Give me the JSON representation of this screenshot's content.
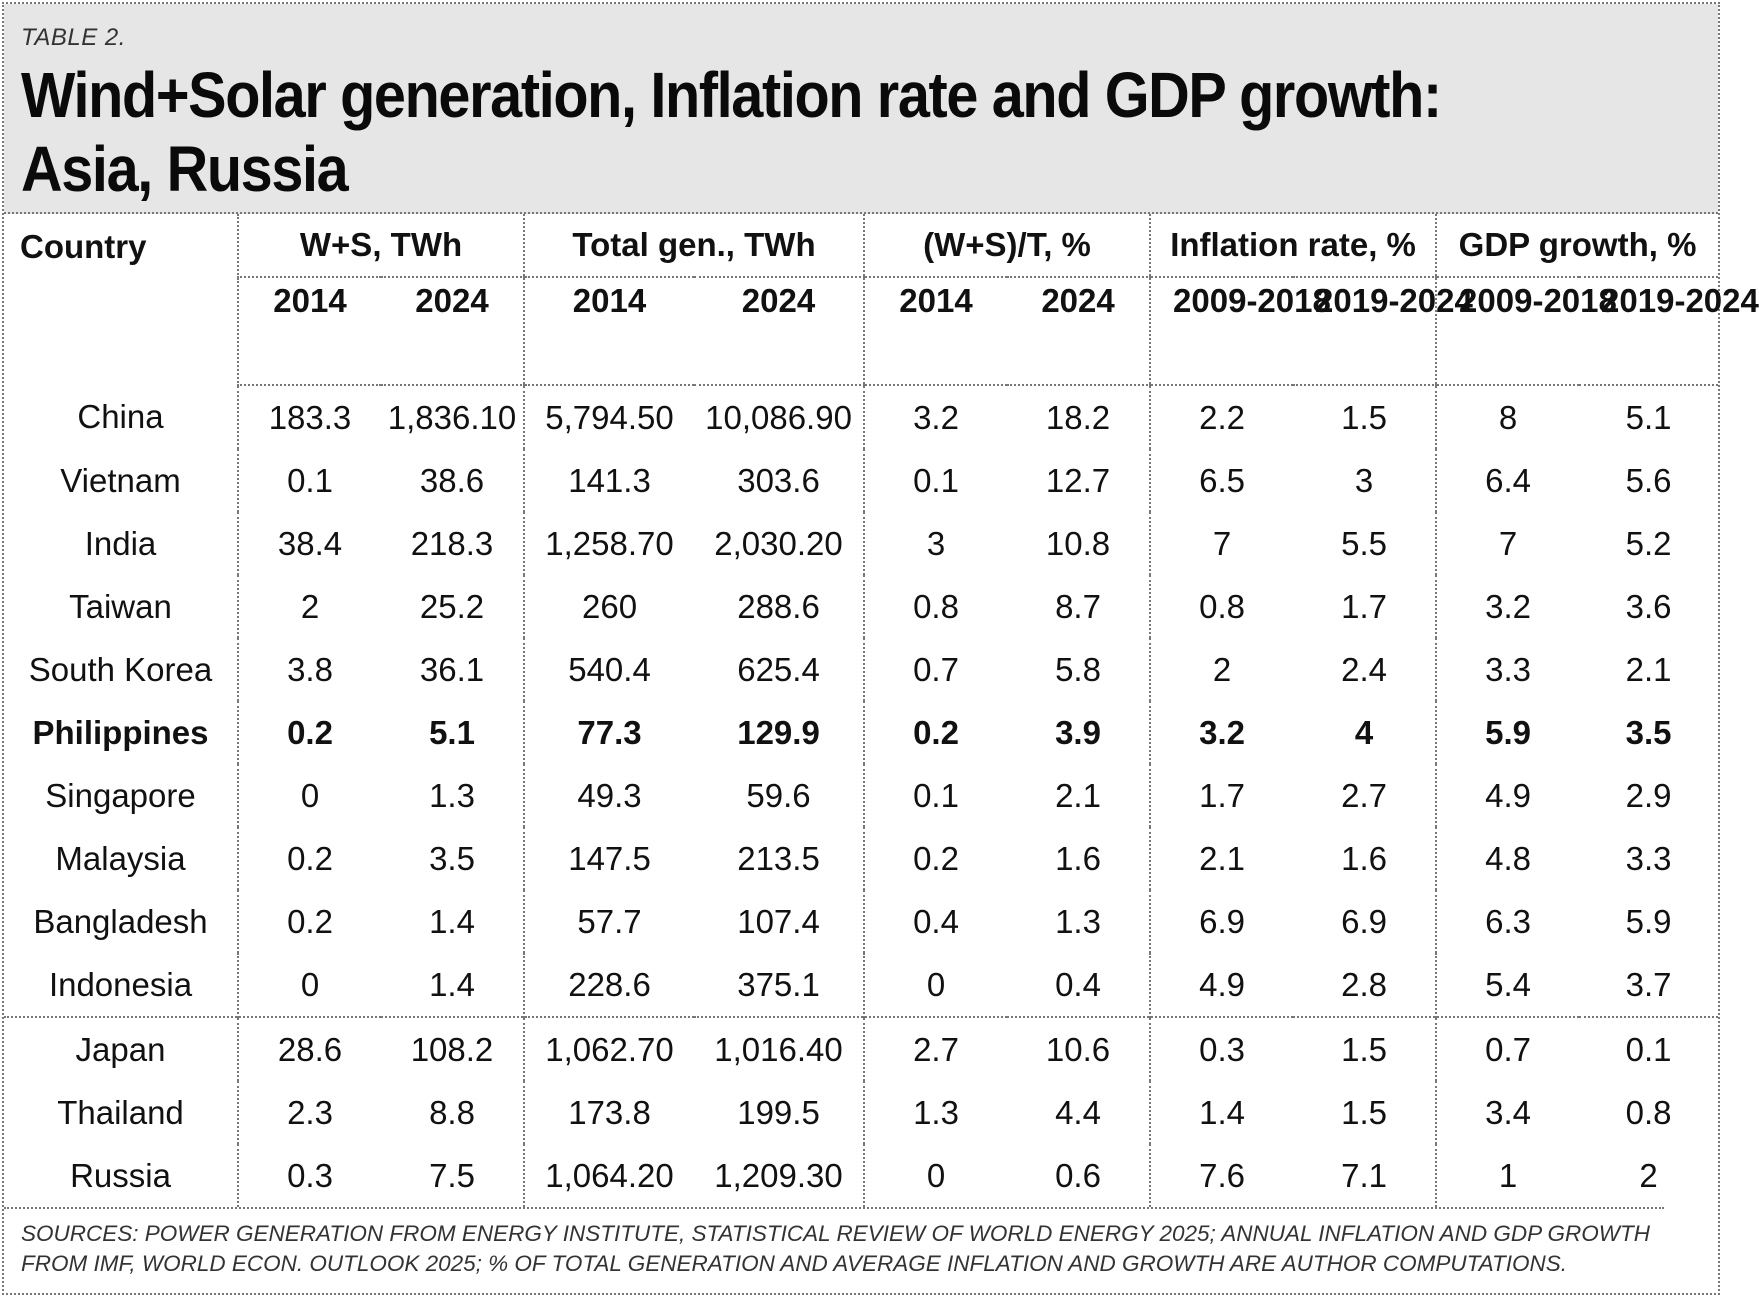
{
  "header": {
    "table_label": "TABLE 2.",
    "title_line1": "Wind+Solar generation, Inflation rate and GDP growth:",
    "title_line2": "Asia, Russia"
  },
  "columns": {
    "country": "Country",
    "groups": [
      "W+S, TWh",
      "Total gen., TWh",
      "(W+S)/T, %",
      "Inflation rate, %",
      "GDP growth, %"
    ],
    "years": [
      "2014",
      "2024",
      "2014",
      "2024",
      "2014",
      "2024",
      "2009-2018",
      "2019-2024",
      "2009-2018",
      "2019-2024"
    ]
  },
  "rows": [
    {
      "country": "China",
      "values": [
        "183.3",
        "1,836.10",
        "5,794.50",
        "10,086.90",
        "3.2",
        "18.2",
        "2.2",
        "1.5",
        "8",
        "5.1"
      ]
    },
    {
      "country": "Vietnam",
      "values": [
        "0.1",
        "38.6",
        "141.3",
        "303.6",
        "0.1",
        "12.7",
        "6.5",
        "3",
        "6.4",
        "5.6"
      ]
    },
    {
      "country": "India",
      "values": [
        "38.4",
        "218.3",
        "1,258.70",
        "2,030.20",
        "3",
        "10.8",
        "7",
        "5.5",
        "7",
        "5.2"
      ]
    },
    {
      "country": "Taiwan",
      "values": [
        "2",
        "25.2",
        "260",
        "288.6",
        "0.8",
        "8.7",
        "0.8",
        "1.7",
        "3.2",
        "3.6"
      ]
    },
    {
      "country": "South Korea",
      "values": [
        "3.8",
        "36.1",
        "540.4",
        "625.4",
        "0.7",
        "5.8",
        "2",
        "2.4",
        "3.3",
        "2.1"
      ]
    },
    {
      "country": "Philippines",
      "values": [
        "0.2",
        "5.1",
        "77.3",
        "129.9",
        "0.2",
        "3.9",
        "3.2",
        "4",
        "5.9",
        "3.5"
      ]
    },
    {
      "country": "Singapore",
      "values": [
        "0",
        "1.3",
        "49.3",
        "59.6",
        "0.1",
        "2.1",
        "1.7",
        "2.7",
        "4.9",
        "2.9"
      ]
    },
    {
      "country": "Malaysia",
      "values": [
        "0.2",
        "3.5",
        "147.5",
        "213.5",
        "0.2",
        "1.6",
        "2.1",
        "1.6",
        "4.8",
        "3.3"
      ]
    },
    {
      "country": "Bangladesh",
      "values": [
        "0.2",
        "1.4",
        "57.7",
        "107.4",
        "0.4",
        "1.3",
        "6.9",
        "6.9",
        "6.3",
        "5.9"
      ]
    },
    {
      "country": "Indonesia",
      "values": [
        "0",
        "1.4",
        "228.6",
        "375.1",
        "0",
        "0.4",
        "4.9",
        "2.8",
        "5.4",
        "3.7"
      ]
    },
    {
      "country": "Japan",
      "values": [
        "28.6",
        "108.2",
        "1,062.70",
        "1,016.40",
        "2.7",
        "10.6",
        "0.3",
        "1.5",
        "0.7",
        "0.1"
      ]
    },
    {
      "country": "Thailand",
      "values": [
        "2.3",
        "8.8",
        "173.8",
        "199.5",
        "1.3",
        "4.4",
        "1.4",
        "1.5",
        "3.4",
        "0.8"
      ]
    },
    {
      "country": "Russia",
      "values": [
        "0.3",
        "7.5",
        "1,064.20",
        "1,209.30",
        "0",
        "0.6",
        "7.6",
        "7.1",
        "1",
        "2"
      ]
    }
  ],
  "sources": "SOURCES: POWER GENERATION FROM ENERGY INSTITUTE, STATISTICAL REVIEW OF WORLD ENERGY 2025; ANNUAL INFLATION AND GDP GROWTH FROM IMF, WORLD ECON. OUTLOOK 2025; % OF TOTAL GENERATION AND AVERAGE INFLATION AND GROWTH ARE AUTHOR COMPUTATIONS.",
  "chart_data": {
    "type": "table",
    "title": "Wind+Solar generation, Inflation rate and GDP growth: Asia, Russia",
    "columns": [
      "Country",
      "W+S, TWh 2014",
      "W+S, TWh 2024",
      "Total gen., TWh 2014",
      "Total gen., TWh 2024",
      "(W+S)/T, % 2014",
      "(W+S)/T, % 2024",
      "Inflation rate, % 2009-2018",
      "Inflation rate, % 2019-2024",
      "GDP growth, % 2009-2018",
      "GDP growth, % 2019-2024"
    ],
    "rows": [
      [
        "China",
        183.3,
        1836.1,
        5794.5,
        10086.9,
        3.2,
        18.2,
        2.2,
        1.5,
        8,
        5.1
      ],
      [
        "Vietnam",
        0.1,
        38.6,
        141.3,
        303.6,
        0.1,
        12.7,
        6.5,
        3,
        6.4,
        5.6
      ],
      [
        "India",
        38.4,
        218.3,
        1258.7,
        2030.2,
        3,
        10.8,
        7,
        5.5,
        7,
        5.2
      ],
      [
        "Taiwan",
        2,
        25.2,
        260,
        288.6,
        0.8,
        8.7,
        0.8,
        1.7,
        3.2,
        3.6
      ],
      [
        "South Korea",
        3.8,
        36.1,
        540.4,
        625.4,
        0.7,
        5.8,
        2,
        2.4,
        3.3,
        2.1
      ],
      [
        "Philippines",
        0.2,
        5.1,
        77.3,
        129.9,
        0.2,
        3.9,
        3.2,
        4,
        5.9,
        3.5
      ],
      [
        "Singapore",
        0,
        1.3,
        49.3,
        59.6,
        0.1,
        2.1,
        1.7,
        2.7,
        4.9,
        2.9
      ],
      [
        "Malaysia",
        0.2,
        3.5,
        147.5,
        213.5,
        0.2,
        1.6,
        2.1,
        1.6,
        4.8,
        3.3
      ],
      [
        "Bangladesh",
        0.2,
        1.4,
        57.7,
        107.4,
        0.4,
        1.3,
        6.9,
        6.9,
        6.3,
        5.9
      ],
      [
        "Indonesia",
        0,
        1.4,
        228.6,
        375.1,
        0,
        0.4,
        4.9,
        2.8,
        5.4,
        3.7
      ],
      [
        "Japan",
        28.6,
        108.2,
        1062.7,
        1016.4,
        2.7,
        10.6,
        0.3,
        1.5,
        0.7,
        0.1
      ],
      [
        "Thailand",
        2.3,
        8.8,
        173.8,
        199.5,
        1.3,
        4.4,
        1.4,
        1.5,
        3.4,
        0.8
      ],
      [
        "Russia",
        0.3,
        7.5,
        1064.2,
        1209.3,
        0,
        0.6,
        7.6,
        7.1,
        1,
        2
      ]
    ]
  }
}
